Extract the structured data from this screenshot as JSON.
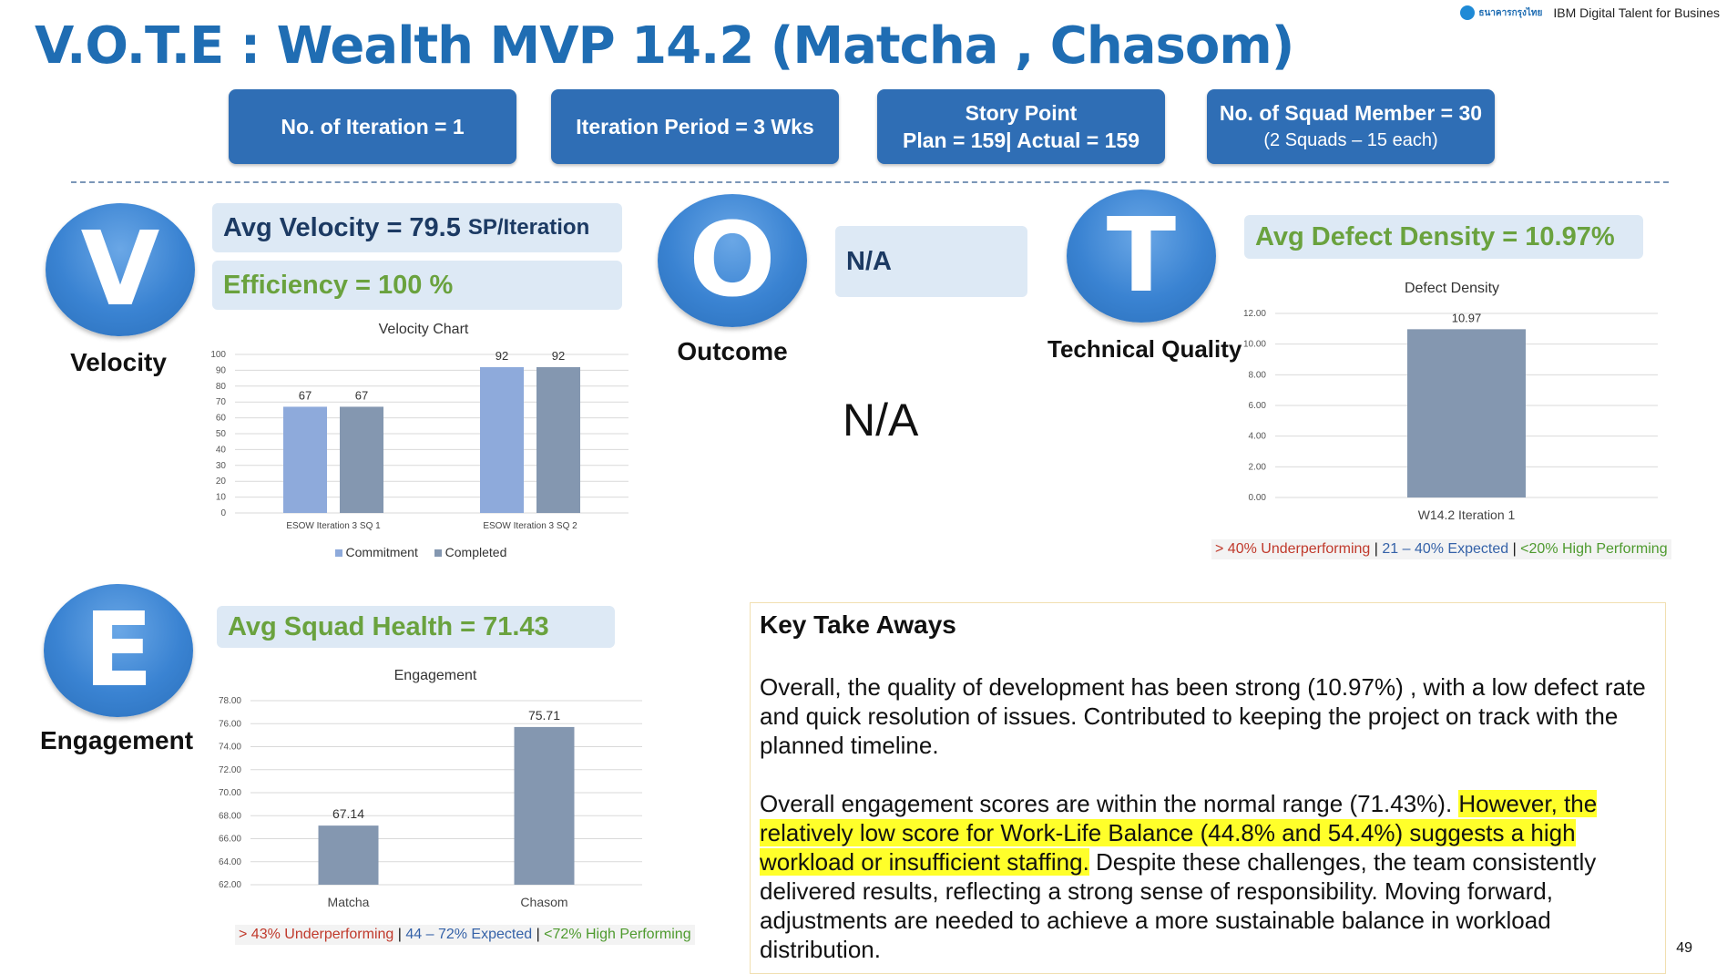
{
  "header": {
    "title": "V.O.T.E : Wealth MVP 14.2 (Matcha , Chasom)",
    "brand_logo_text": "ธนาคารกรุงไทย",
    "brand_text": "IBM Digital Talent for Busines"
  },
  "stats": [
    {
      "line1": "No. of Iteration = 1",
      "line2": ""
    },
    {
      "line1": "Iteration Period = 3 Wks",
      "line2": ""
    },
    {
      "line1": "Story Point",
      "line2": "Plan = 159|  Actual = 159"
    },
    {
      "line1": "No. of Squad Member = 30",
      "line2": "(2 Squads – 15 each)"
    }
  ],
  "velocity": {
    "letter": "V",
    "label": "Velocity",
    "avg_main": "Avg Velocity = 79.5",
    "avg_unit": "SP/Iteration",
    "efficiency": "Efficiency = 100 %",
    "chart_title": "Velocity Chart",
    "legend": [
      "Commitment",
      "Completed"
    ]
  },
  "outcome": {
    "letter": "O",
    "label": "Outcome",
    "pill": "N/A",
    "big": "N/A"
  },
  "quality": {
    "letter": "T",
    "label": "Technical Quality",
    "avg": "Avg Defect Density = 10.97%",
    "chart_title": "Defect Density",
    "legend": {
      "red": "> 40% Underperforming",
      "blue": "21 – 40% Expected",
      "green": "<20% High Performing",
      "sep": " | "
    }
  },
  "engagement": {
    "letter": "E",
    "label": "Engagement",
    "avg": "Avg Squad Health = 71.43",
    "chart_title": "Engagement",
    "legend": {
      "red": "> 43% Underperforming",
      "blue": "44 – 72% Expected",
      "green": "<72% High Performing",
      "sep": " | "
    }
  },
  "takeaways": {
    "heading": "Key Take Aways",
    "p1": "Overall, the quality of development has been strong (10.97%) , with a low defect rate and quick resolution of issues. Contributed to keeping the project on track with the planned timeline.",
    "p2_a": "Overall engagement scores are within the normal range (71.43%). ",
    "p2_hl": "However, the relatively low score for Work-Life Balance (44.8% and 54.4%) suggests a high workload or insufficient staffing.",
    "p2_b": " Despite these challenges, the team consistently delivered results, reflecting a strong sense of responsibility. Moving forward, adjustments are needed to achieve a more sustainable balance in workload distribution."
  },
  "page_number": "49",
  "colors": {
    "accent": "#2f6eb5",
    "bar_light": "#8eaadb",
    "bar_dark": "#8497b0",
    "highlight": "#ffff2a"
  },
  "chart_data": [
    {
      "type": "bar",
      "title": "Velocity Chart",
      "categories": [
        "ESOW Iteration 3 SQ 1",
        "ESOW Iteration 3 SQ 2"
      ],
      "series": [
        {
          "name": "Commitment",
          "values": [
            67,
            92
          ]
        },
        {
          "name": "Completed",
          "values": [
            67,
            92
          ]
        }
      ],
      "ylim": [
        0,
        100
      ],
      "yticks": [
        "0",
        "10",
        "20",
        "30",
        "40",
        "50",
        "60",
        "70",
        "80",
        "90",
        "100"
      ],
      "data_labels": true,
      "legend": "bottom",
      "grid": true
    },
    {
      "type": "bar",
      "title": "Defect Density",
      "categories": [
        "W14.2 Iteration 1"
      ],
      "values": [
        10.97
      ],
      "value_labels": [
        "10.97"
      ],
      "ylim": [
        0,
        12
      ],
      "yticks": [
        "0.00",
        "2.00",
        "4.00",
        "6.00",
        "8.00",
        "10.00",
        "12.00"
      ],
      "grid": true
    },
    {
      "type": "bar",
      "title": "Engagement",
      "categories": [
        "Matcha",
        "Chasom"
      ],
      "values": [
        67.14,
        75.71
      ],
      "value_labels": [
        "67.14",
        "75.71"
      ],
      "ylim": [
        62,
        78
      ],
      "yticks": [
        "62.00",
        "64.00",
        "66.00",
        "68.00",
        "70.00",
        "72.00",
        "74.00",
        "76.00",
        "78.00"
      ],
      "grid": true
    }
  ]
}
